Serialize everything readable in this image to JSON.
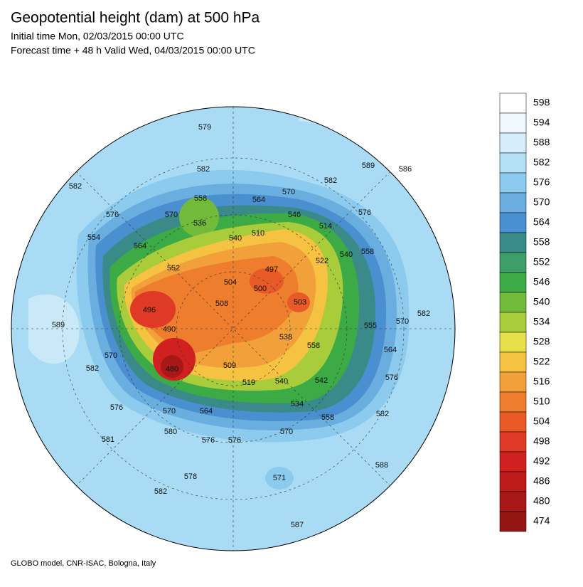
{
  "header": {
    "title": "Geopotential height (dam) at 500 hPa",
    "initial_time": "Initial time Mon, 02/03/2015 00:00 UTC",
    "forecast_time": "Forecast time + 48 h Valid Wed, 04/03/2015 00:00 UTC"
  },
  "colorbar": {
    "labels": [
      598,
      594,
      588,
      582,
      576,
      570,
      564,
      558,
      552,
      546,
      540,
      534,
      528,
      522,
      516,
      510,
      504,
      498,
      492,
      486,
      480,
      474
    ],
    "colors": [
      "#ffffff",
      "#eef8fd",
      "#d5eefa",
      "#b3e0f5",
      "#8ccbee",
      "#6aaee0",
      "#4a8fcf",
      "#3a8a8a",
      "#3d9e6a",
      "#3cab45",
      "#72bb3a",
      "#a8cc3a",
      "#e8e04a",
      "#f5c242",
      "#f2a13a",
      "#ee7d2e",
      "#e85a28",
      "#de3a25",
      "#d02020",
      "#be1c1c",
      "#a81818",
      "#951515"
    ]
  },
  "map": {
    "contour_labels": [
      579,
      582,
      589,
      586,
      582,
      582,
      570,
      564,
      558,
      576,
      570,
      546,
      536,
      514,
      510,
      576,
      554,
      558,
      540,
      522,
      540,
      564,
      552,
      497,
      504,
      500,
      503,
      508,
      496,
      570,
      582,
      589,
      555,
      538,
      490,
      558,
      564,
      570,
      509,
      582,
      480,
      576,
      542,
      519,
      540,
      576,
      570,
      564,
      534,
      558,
      582,
      580,
      581,
      576,
      576,
      570,
      578,
      571,
      588,
      582,
      587
    ]
  },
  "footer": "GLOBO model, CNR-ISAC, Bologna, Italy"
}
